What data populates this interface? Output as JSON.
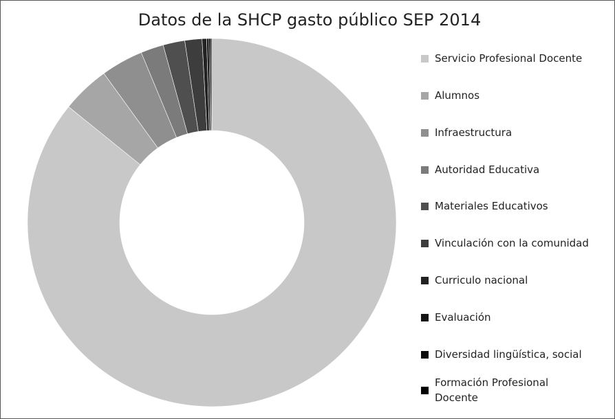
{
  "chart_data": {
    "type": "donut",
    "title": "Datos de la SHCP gasto público SEP 2014",
    "categories": [
      "Servicio Profesional Docente",
      "Alumnos",
      "Infraestructura",
      "Autoridad Educativa",
      "Materiales Educativos",
      "Vinculación con la comunidad",
      "Curriculo nacional",
      "Evaluación",
      "Diversidad lingüística, social",
      "Formación Profesional Docente"
    ],
    "values": [
      85.7,
      4.2,
      3.7,
      2.0,
      1.9,
      1.5,
      0.4,
      0.2,
      0.15,
      0.1
    ],
    "colors": [
      "#c8c8c8",
      "#a6a6a6",
      "#8f8f8f",
      "#7b7b7b",
      "#4f4f4f",
      "#3d3d3d",
      "#222222",
      "#141414",
      "#0a0a0a",
      "#000000"
    ],
    "legend": "right"
  }
}
